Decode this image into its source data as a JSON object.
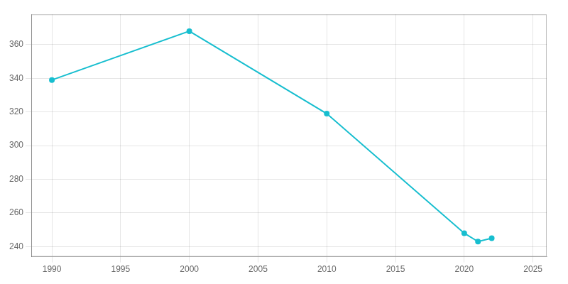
{
  "chart_data": {
    "type": "line",
    "x": [
      1990,
      2000,
      2010,
      2020,
      2021,
      2022
    ],
    "values": [
      339,
      368,
      319,
      248,
      243,
      245
    ],
    "color": "#17becf",
    "marker": "circle",
    "xlim": [
      1988.5,
      2026
    ],
    "ylim": [
      234,
      378
    ],
    "xticks": [
      1990,
      1995,
      2000,
      2005,
      2010,
      2015,
      2020,
      2025
    ],
    "yticks": [
      240,
      260,
      280,
      300,
      320,
      340,
      360
    ],
    "grid": true
  }
}
